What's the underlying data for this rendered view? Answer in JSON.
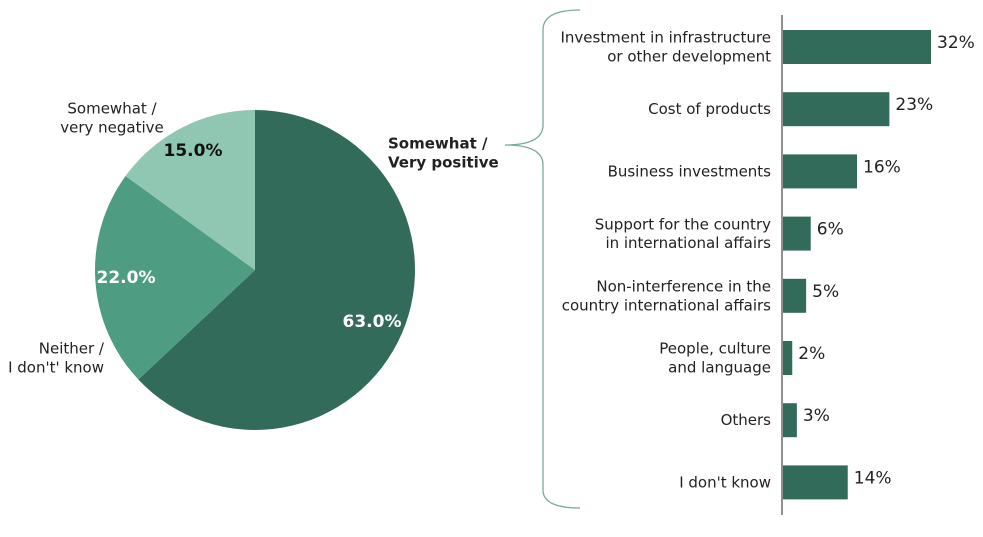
{
  "chart_data": [
    {
      "type": "pie",
      "categories": [
        "Somewhat /\nVery positive",
        "Neither /\nI don't' know",
        "Somewhat /\nvery negative"
      ],
      "values": [
        63,
        22,
        15
      ],
      "value_labels": [
        "63.0%",
        "22.0%",
        "15.0%"
      ],
      "colors": [
        "#336b5a",
        "#4e9c82",
        "#8fc7b2"
      ]
    },
    {
      "type": "hbar",
      "categories": [
        "Investment in infrastructure\nor other development",
        "Cost of products",
        "Business investments",
        "Support for the country\nin international affairs",
        "Non-interference in the\ncountry international affairs",
        "People, culture\nand language",
        "Others",
        "I don't know"
      ],
      "values": [
        32,
        23,
        16,
        6,
        5,
        2,
        3,
        14
      ],
      "value_labels": [
        "32%",
        "23%",
        "16%",
        "6%",
        "5%",
        "2%",
        "3%",
        "14%"
      ],
      "color": "#336b5a"
    }
  ]
}
